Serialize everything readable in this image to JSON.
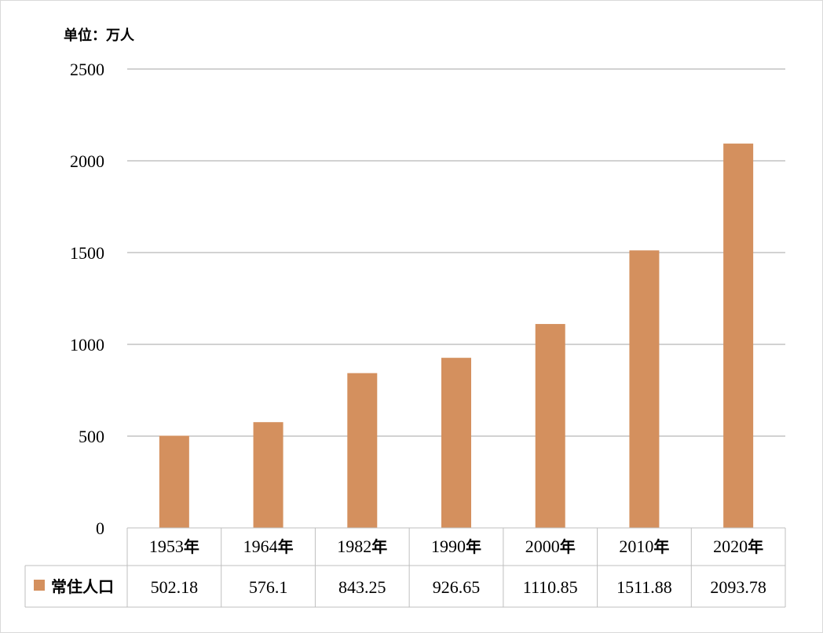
{
  "unit_label": "单位：万人",
  "colors": {
    "bar": "#d4905e",
    "grid": "#a6a6a6",
    "table_border": "#bfbfbf"
  },
  "chart_data": {
    "type": "bar",
    "title": "",
    "xlabel": "",
    "ylabel": "",
    "categories": [
      "1953年",
      "1964年",
      "1982年",
      "1990年",
      "2000年",
      "2010年",
      "2020年"
    ],
    "series": [
      {
        "name": "常住人口",
        "values": [
          502.18,
          576.1,
          843.25,
          926.65,
          1110.85,
          1511.88,
          2093.78
        ]
      }
    ],
    "value_labels": [
      "502.18",
      "576.1",
      "843.25",
      "926.65",
      "1110.85",
      "1511.88",
      "2093.78"
    ],
    "ylim": [
      0,
      2500
    ],
    "yticks": [
      0,
      500,
      1000,
      1500,
      2000,
      2500
    ],
    "grid": true,
    "legend": "data-table-left"
  }
}
